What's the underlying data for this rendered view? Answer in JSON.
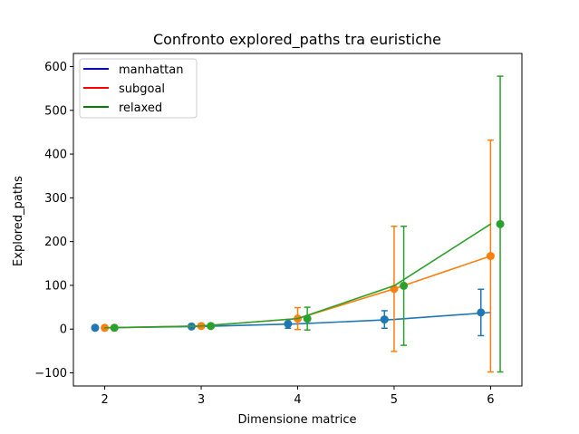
{
  "chart_data": {
    "type": "line",
    "title": "Confronto explored_paths tra euristiche",
    "xlabel": "Dimensione matrice",
    "ylabel": "Explored_paths",
    "xlim": [
      1.675,
      6.325
    ],
    "ylim": [
      -130,
      630
    ],
    "xticks": [
      2,
      3,
      4,
      5,
      6
    ],
    "yticks": [
      -100,
      0,
      100,
      200,
      300,
      400,
      500,
      600
    ],
    "ytick_labels": [
      "−100",
      "0",
      "100",
      "200",
      "300",
      "400",
      "500",
      "600"
    ],
    "legend": {
      "placement": "top-left",
      "entries": [
        {
          "label": "manhattan",
          "color": "#0000ff"
        },
        {
          "label": "subgoal",
          "color": "#ff0000"
        },
        {
          "label": "relaxed",
          "color": "#008000"
        }
      ]
    },
    "series": [
      {
        "line_color": "#1f77b4",
        "marker_color": "#1f77b4",
        "x": [
          1.9,
          2.9,
          3.9,
          4.9,
          5.9
        ],
        "y": [
          3,
          6,
          12,
          22,
          38
        ],
        "err": [
          1,
          3,
          10,
          20,
          53
        ],
        "line_x": [
          2,
          3,
          4,
          5,
          6
        ],
        "line_y": [
          3,
          6,
          12,
          22,
          38
        ]
      },
      {
        "line_color": "#ff7f0e",
        "marker_color": "#ff7f0e",
        "x": [
          2,
          3,
          4,
          5,
          6
        ],
        "y": [
          3,
          7,
          24,
          92,
          167
        ],
        "err": [
          1,
          4,
          25,
          143,
          265
        ],
        "line_x": [
          2,
          3,
          4,
          5,
          6
        ],
        "line_y": [
          3,
          7,
          24,
          92,
          167
        ]
      },
      {
        "line_color": "#2ca02c",
        "marker_color": "#2ca02c",
        "x": [
          2.1,
          3.1,
          4.1,
          5.1,
          6.1
        ],
        "y": [
          3,
          7,
          24,
          99,
          240
        ],
        "err": [
          1,
          4,
          26,
          136,
          338
        ],
        "line_x": [
          2,
          3,
          4,
          5,
          6
        ],
        "line_y": [
          3,
          7,
          24,
          99,
          240
        ]
      }
    ]
  }
}
